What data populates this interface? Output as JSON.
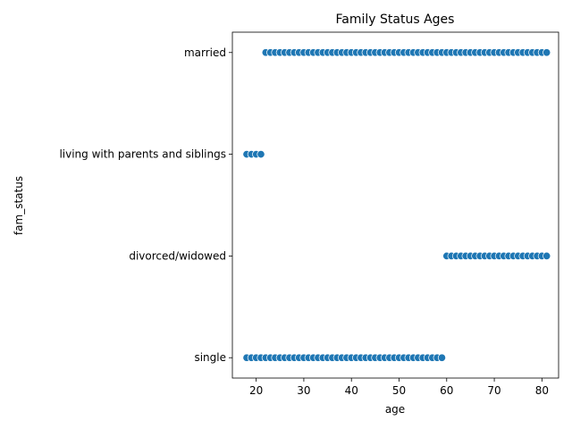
{
  "chart_data": {
    "type": "scatter",
    "title": "Family Status Ages",
    "xlabel": "age",
    "ylabel": "fam_status",
    "xlim": [
      15,
      83.5
    ],
    "xticks": [
      20,
      30,
      40,
      50,
      60,
      70,
      80
    ],
    "categories": [
      "married",
      "living with parents and siblings",
      "divorced/widowed",
      "single"
    ],
    "grid": false,
    "point_color": "#1f77b4",
    "series": [
      {
        "category": "married",
        "x": [
          22,
          23,
          24,
          25,
          26,
          27,
          28,
          29,
          30,
          31,
          32,
          33,
          34,
          35,
          36,
          37,
          38,
          39,
          40,
          41,
          42,
          43,
          44,
          45,
          46,
          47,
          48,
          49,
          50,
          51,
          52,
          53,
          54,
          55,
          56,
          57,
          58,
          59,
          60,
          61,
          62,
          63,
          64,
          65,
          66,
          67,
          68,
          69,
          70,
          71,
          72,
          73,
          74,
          75,
          76,
          77,
          78,
          79,
          80,
          81
        ]
      },
      {
        "category": "living with parents and siblings",
        "x": [
          18,
          19,
          20,
          21
        ]
      },
      {
        "category": "divorced/widowed",
        "x": [
          60,
          61,
          62,
          63,
          64,
          65,
          66,
          67,
          68,
          69,
          70,
          71,
          72,
          73,
          74,
          75,
          76,
          77,
          78,
          79,
          80,
          81
        ]
      },
      {
        "category": "single",
        "x": [
          18,
          19,
          20,
          21,
          22,
          23,
          24,
          25,
          26,
          27,
          28,
          29,
          30,
          31,
          32,
          33,
          34,
          35,
          36,
          37,
          38,
          39,
          40,
          41,
          42,
          43,
          44,
          45,
          46,
          47,
          48,
          49,
          50,
          51,
          52,
          53,
          54,
          55,
          56,
          57,
          58,
          59
        ]
      }
    ]
  }
}
